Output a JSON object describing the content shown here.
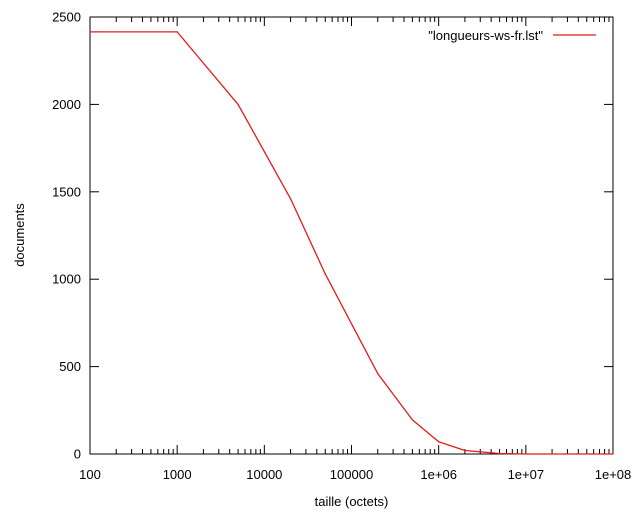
{
  "chart_data": {
    "type": "line",
    "title": "",
    "xlabel": "taille (octets)",
    "ylabel": "documents",
    "xscale": "log",
    "xlim": [
      100,
      100000000
    ],
    "ylim": [
      0,
      2500
    ],
    "grid": false,
    "legend_position": "top-right",
    "x_tick_labels": [
      "100",
      "1000",
      "10000",
      "100000",
      "1e+06",
      "1e+07",
      "1e+08"
    ],
    "y_tick_labels": [
      "0",
      "500",
      "1000",
      "1500",
      "2000",
      "2500"
    ],
    "series": [
      {
        "name": "\"longueurs-ws-fr.lst\"",
        "color": "#e41a1c",
        "x": [
          100,
          1000,
          5000,
          20000,
          50000,
          200000,
          500000,
          1000000,
          2000000,
          5000000,
          10000000,
          100000000
        ],
        "y": [
          2415,
          2415,
          2000,
          1460,
          1030,
          460,
          195,
          70,
          20,
          3,
          0,
          0
        ]
      }
    ]
  }
}
